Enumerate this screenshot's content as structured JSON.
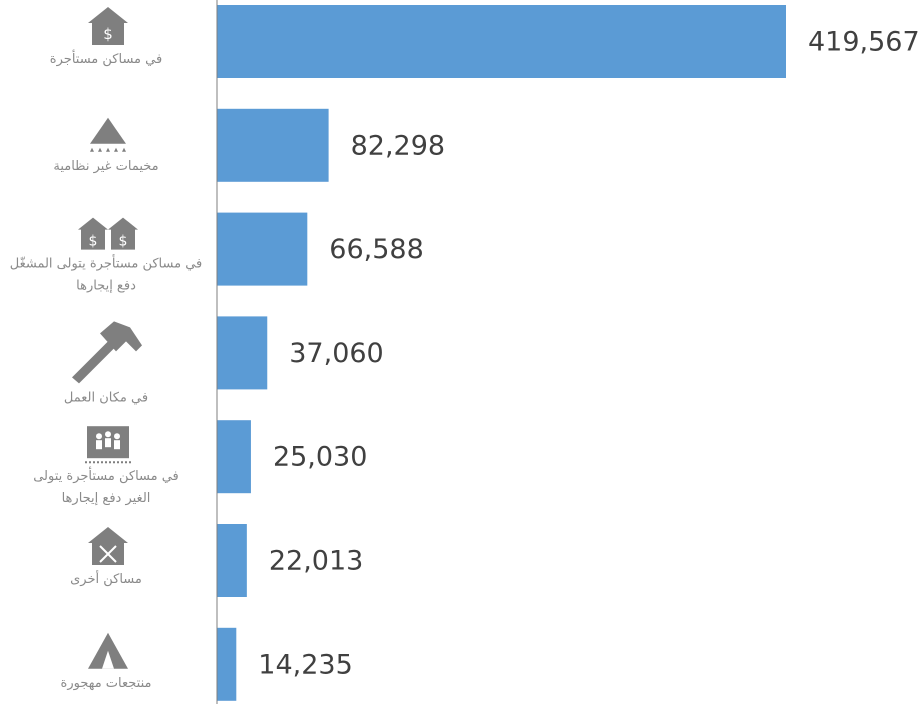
{
  "chart_data": {
    "type": "bar",
    "orientation": "horizontal",
    "title": "",
    "xlabel": "",
    "ylabel": "",
    "xlim": [
      0,
      419567
    ],
    "grid": false,
    "legend": "none",
    "bar_color": "#5b9bd5",
    "categories": [
      {
        "lines": [
          "في مساكن مستأجرة"
        ],
        "icon": "house-dollar-icon"
      },
      {
        "lines": [
          "مخيمات غير نظامية"
        ],
        "icon": "camp-tent-icon"
      },
      {
        "lines": [
          "في مساكن مستأجرة يتولى المشغّل",
          "دفع إيجارها"
        ],
        "icon": "double-house-dollar-icon"
      },
      {
        "lines": [
          "في مكان العمل"
        ],
        "icon": "hammer-icon"
      },
      {
        "lines": [
          "في مساكن مستأجرة يتولى",
          "الغير دفع إيجارها"
        ],
        "icon": "group-shelter-icon"
      },
      {
        "lines": [
          "مساكن أخرى"
        ],
        "icon": "house-x-icon"
      },
      {
        "lines": [
          "منتجعات مهجورة"
        ],
        "icon": "tent-icon"
      }
    ],
    "values": [
      419567,
      82298,
      66588,
      37060,
      25030,
      22013,
      14235
    ],
    "value_labels": [
      "419,567",
      "82,298",
      "66,588",
      "37,060",
      "25,030",
      "22,013",
      "14,235"
    ]
  }
}
